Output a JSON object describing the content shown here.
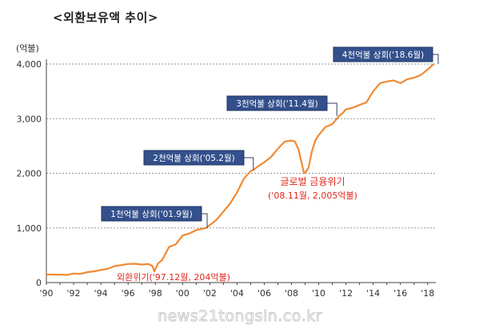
{
  "chart_data": {
    "type": "line",
    "title": "<외환보유액 추이>",
    "y_unit_label": "(억불)",
    "xlabel": "",
    "ylabel": "",
    "xlim": [
      1990,
      2018.6
    ],
    "ylim": [
      0,
      4000
    ],
    "y_ticks": [
      0,
      1000,
      2000,
      3000,
      4000
    ],
    "y_tick_labels": [
      "0",
      "1,000",
      "2,000",
      "3,000",
      "4,000"
    ],
    "x_ticks": [
      1990,
      1992,
      1994,
      1996,
      1998,
      2000,
      2002,
      2004,
      2006,
      2008,
      2010,
      2012,
      2014,
      2016,
      2018
    ],
    "x_tick_labels": [
      "'90",
      "'92",
      "'94",
      "'96",
      "'98",
      "'00",
      "'02",
      "'04",
      "'06",
      "'08",
      "'10",
      "'12",
      "'14",
      "'16",
      "'18"
    ],
    "grid": "horizontal dashed",
    "series_color": "#f08a33",
    "x": [
      1990.0,
      1990.5,
      1991.0,
      1991.5,
      1992.0,
      1992.5,
      1993.0,
      1993.5,
      1994.0,
      1994.5,
      1995.0,
      1995.5,
      1996.0,
      1996.5,
      1997.0,
      1997.5,
      1997.8,
      1997.92,
      1998.2,
      1998.5,
      1999.0,
      1999.5,
      2000.0,
      2000.5,
      2001.0,
      2001.5,
      2001.75,
      2002.0,
      2002.5,
      2003.0,
      2003.5,
      2004.0,
      2004.5,
      2005.0,
      2005.2,
      2005.5,
      2006.0,
      2006.5,
      2007.0,
      2007.5,
      2008.0,
      2008.25,
      2008.5,
      2008.7,
      2008.92,
      2009.0,
      2009.25,
      2009.5,
      2009.75,
      2010.0,
      2010.5,
      2011.0,
      2011.33,
      2011.5,
      2011.75,
      2012.0,
      2012.5,
      2013.0,
      2013.5,
      2014.0,
      2014.5,
      2015.0,
      2015.5,
      2016.0,
      2016.5,
      2017.0,
      2017.5,
      2018.0,
      2018.45
    ],
    "values": [
      148,
      145,
      145,
      140,
      165,
      160,
      190,
      205,
      230,
      250,
      300,
      320,
      340,
      345,
      330,
      340,
      300,
      204,
      350,
      410,
      650,
      700,
      860,
      900,
      960,
      990,
      1000,
      1050,
      1150,
      1300,
      1450,
      1650,
      1900,
      2040,
      2060,
      2120,
      2200,
      2300,
      2450,
      2580,
      2600,
      2580,
      2450,
      2240,
      2005,
      2010,
      2100,
      2400,
      2600,
      2700,
      2850,
      2900,
      3000,
      3050,
      3100,
      3170,
      3200,
      3250,
      3300,
      3500,
      3650,
      3680,
      3700,
      3650,
      3720,
      3750,
      3800,
      3900,
      4000
    ],
    "annotations": [
      {
        "text": "1천억불 상회('01.9월)",
        "x": 2001.75,
        "y": 1000,
        "style": "box"
      },
      {
        "text": "2천억불 상회('05.2월)",
        "x": 2005.2,
        "y": 2060,
        "style": "box"
      },
      {
        "text": "3천억불 상회('11.4월)",
        "x": 2011.33,
        "y": 3050,
        "style": "box"
      },
      {
        "text": "4천억불 상회('18.6월)",
        "x": 2018.45,
        "y": 4000,
        "style": "box"
      },
      {
        "text": "글로벌 금융위기",
        "text2": "('08.11월, 2,005억불)",
        "x": 2008.92,
        "y": 2005,
        "style": "red"
      },
      {
        "text": "외환위기('97.12월, 204억불)",
        "x": 1997.92,
        "y": 204,
        "style": "red"
      }
    ],
    "watermark": "news21tongsin.co.kr"
  }
}
